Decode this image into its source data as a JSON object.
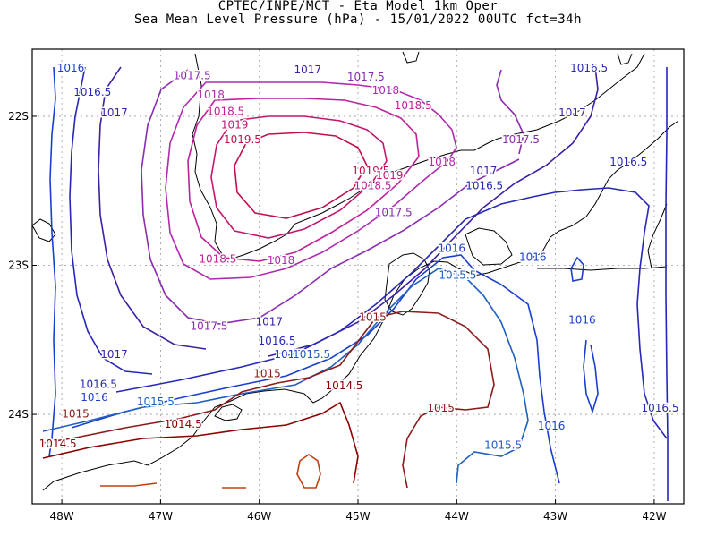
{
  "chart_data": {
    "type": "contour",
    "title": "CPTEC/INPE/MCT -  Eta Model 1km Oper",
    "subtitle": "Sea Mean Level Pressure (hPa) - 15/01/2022 00UTC fct=34h",
    "xlabel": "",
    "ylabel": "",
    "xlim": [
      -48.3,
      -41.7
    ],
    "ylim": [
      -24.6,
      -21.55
    ],
    "x_ticks": [
      "48W",
      "47W",
      "46W",
      "45W",
      "44W",
      "43W",
      "42W"
    ],
    "y_ticks": [
      "22S",
      "23S",
      "24S"
    ],
    "grid": true,
    "contour_levels": [
      1014.5,
      1015,
      1015.5,
      1016,
      1016.5,
      1017,
      1017.5,
      1018,
      1018.5,
      1019,
      1019.5
    ],
    "contour_labels": [
      {
        "text": "1016",
        "lon": -47.91,
        "lat": -21.68
      },
      {
        "text": "1016.5",
        "lon": -47.69,
        "lat": -21.84
      },
      {
        "text": "1017",
        "lon": -47.47,
        "lat": -21.98
      },
      {
        "text": "1017.5",
        "lon": -46.68,
        "lat": -21.73
      },
      {
        "text": "1018",
        "lon": -46.49,
        "lat": -21.86
      },
      {
        "text": "1018.5",
        "lon": -46.34,
        "lat": -21.97
      },
      {
        "text": "1019",
        "lon": -46.25,
        "lat": -22.06
      },
      {
        "text": "1019.5",
        "lon": -46.17,
        "lat": -22.16
      },
      {
        "text": "1017",
        "lon": -45.51,
        "lat": -21.69
      },
      {
        "text": "1017.5",
        "lon": -44.92,
        "lat": -21.74
      },
      {
        "text": "1018",
        "lon": -44.72,
        "lat": -21.83
      },
      {
        "text": "1018.5",
        "lon": -44.44,
        "lat": -21.93
      },
      {
        "text": "1019.5",
        "lon": -44.87,
        "lat": -22.37
      },
      {
        "text": "1019",
        "lon": -44.68,
        "lat": -22.4
      },
      {
        "text": "1018.5",
        "lon": -44.85,
        "lat": -22.47
      },
      {
        "text": "1018",
        "lon": -44.15,
        "lat": -22.31
      },
      {
        "text": "1017.5",
        "lon": -43.35,
        "lat": -22.16
      },
      {
        "text": "1017",
        "lon": -42.83,
        "lat": -21.98
      },
      {
        "text": "1016.5",
        "lon": -42.66,
        "lat": -21.68
      },
      {
        "text": "1017",
        "lon": -43.73,
        "lat": -22.37
      },
      {
        "text": "1016.5",
        "lon": -43.72,
        "lat": -22.47
      },
      {
        "text": "1017.5",
        "lon": -44.64,
        "lat": -22.65
      },
      {
        "text": "1016.5",
        "lon": -42.26,
        "lat": -22.31
      },
      {
        "text": "1018.5",
        "lon": -46.42,
        "lat": -22.96
      },
      {
        "text": "1018",
        "lon": -45.78,
        "lat": -22.97
      },
      {
        "text": "1016",
        "lon": -44.05,
        "lat": -22.89
      },
      {
        "text": "1016",
        "lon": -43.23,
        "lat": -22.95
      },
      {
        "text": "1015.5",
        "lon": -43.99,
        "lat": -23.07
      },
      {
        "text": "1015",
        "lon": -44.85,
        "lat": -23.35
      },
      {
        "text": "1016",
        "lon": -42.73,
        "lat": -23.37
      },
      {
        "text": "1017.5",
        "lon": -46.51,
        "lat": -23.41
      },
      {
        "text": "1017",
        "lon": -45.9,
        "lat": -23.38
      },
      {
        "text": "1016.5",
        "lon": -45.82,
        "lat": -23.51
      },
      {
        "text": "1016",
        "lon": -45.71,
        "lat": -23.6
      },
      {
        "text": "1015.5",
        "lon": -45.47,
        "lat": -23.6
      },
      {
        "text": "1017",
        "lon": -47.47,
        "lat": -23.6
      },
      {
        "text": "1015",
        "lon": -45.92,
        "lat": -23.73
      },
      {
        "text": "1016.5",
        "lon": -47.63,
        "lat": -23.8
      },
      {
        "text": "1014.5",
        "lon": -45.14,
        "lat": -23.81
      },
      {
        "text": "1016",
        "lon": -47.67,
        "lat": -23.89
      },
      {
        "text": "1015.5",
        "lon": -47.05,
        "lat": -23.92
      },
      {
        "text": "1015",
        "lon": -44.16,
        "lat": -23.96
      },
      {
        "text": "1016.5",
        "lon": -41.94,
        "lat": -23.96
      },
      {
        "text": "1015",
        "lon": -47.86,
        "lat": -24.0
      },
      {
        "text": "1014.5",
        "lon": -46.77,
        "lat": -24.07
      },
      {
        "text": "1016",
        "lon": -43.04,
        "lat": -24.08
      },
      {
        "text": "1014.5",
        "lon": -48.04,
        "lat": -24.2
      },
      {
        "text": "1015.5",
        "lon": -43.53,
        "lat": -24.21
      }
    ],
    "colors": {
      "1014.5": "#8b0000",
      "1015": "#8b1a1a",
      "1015.5": "#1f5fbf",
      "1016": "#1a3fcf",
      "1016.5": "#2727b8",
      "1017": "#3d1fa8",
      "1017.5": "#8a2bb0",
      "1018": "#b02ab0",
      "1018.5": "#c0209a",
      "1019": "#c01870",
      "1019.5": "#c01050"
    }
  }
}
